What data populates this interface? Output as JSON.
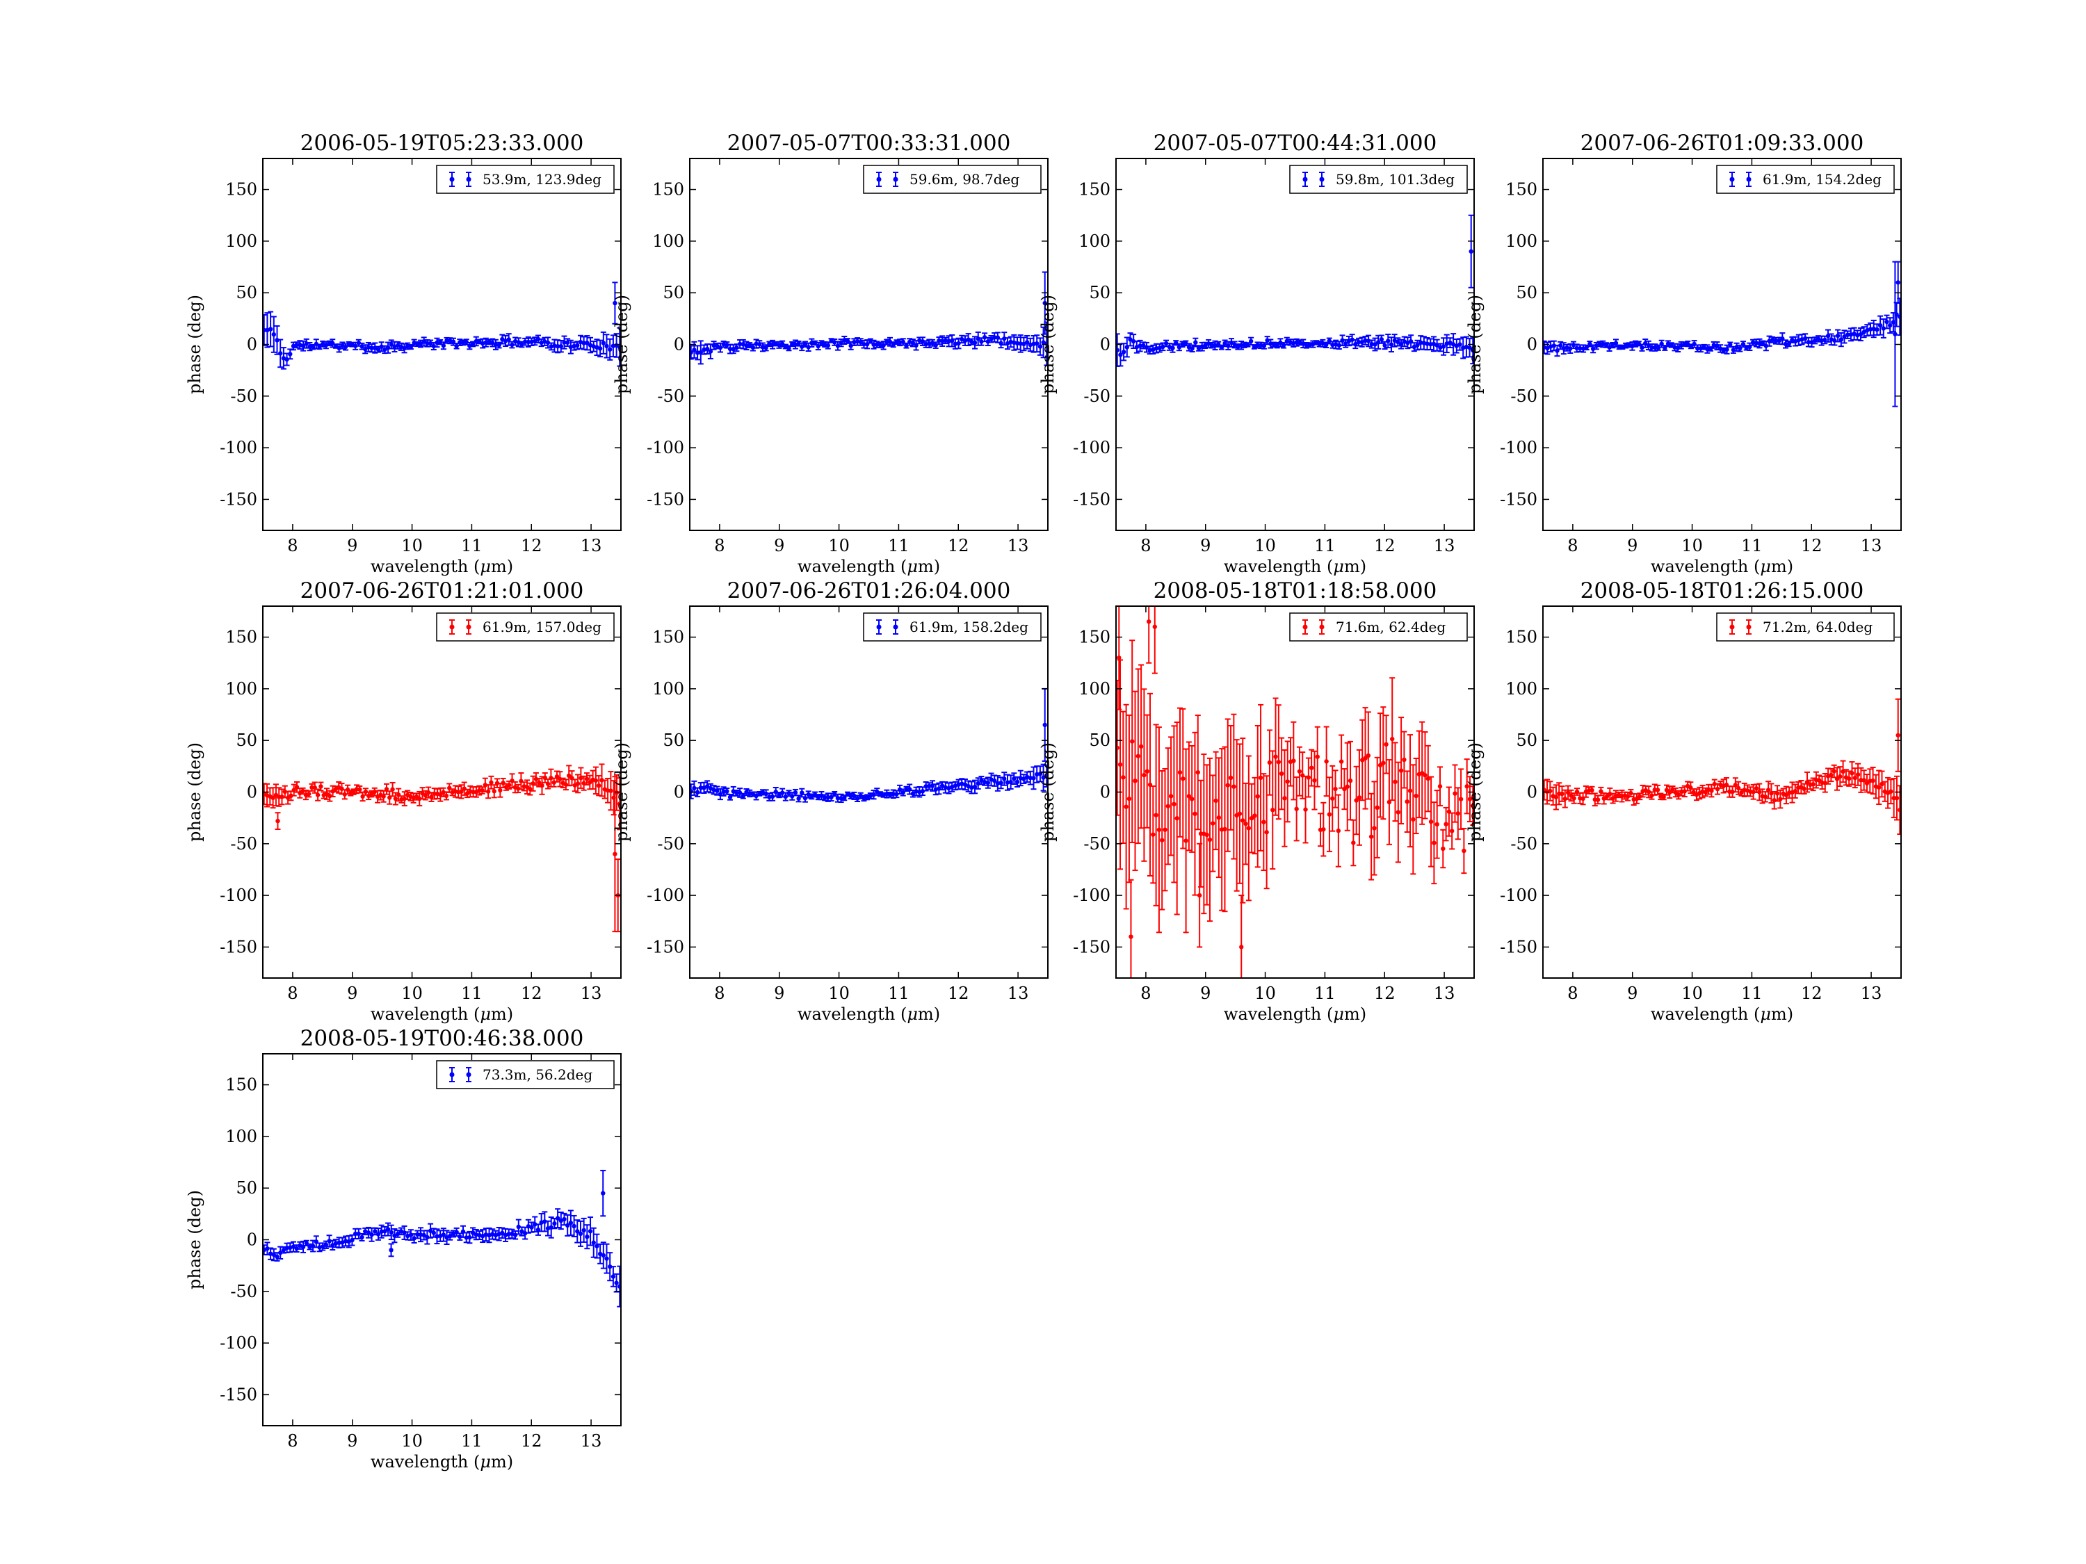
{
  "figure": {
    "domain": "Chart",
    "panel_count": 9
  },
  "chart_data": [
    {
      "type": "scatter",
      "title": "2006-05-19T05:23:33.000",
      "xlabel": "wavelength ($\\mu$m)",
      "ylabel": "phase (deg)",
      "xlim": [
        7.5,
        13.5
      ],
      "ylim": [
        -180,
        180
      ],
      "xticks": [
        8,
        9,
        10,
        11,
        12,
        13
      ],
      "yticks": [
        -150,
        -100,
        -50,
        0,
        50,
        100,
        150
      ],
      "grid": false,
      "legend_position": "top-right",
      "color": "#0000ff",
      "series": [
        {
          "name": "53.9m, 123.9deg",
          "profile": [
            [
              7.5,
              14,
              14
            ],
            [
              7.6,
              13,
              16
            ],
            [
              7.7,
              12,
              17
            ],
            [
              7.8,
              -10,
              10
            ],
            [
              7.9,
              -16,
              8
            ],
            [
              8.0,
              -1,
              4
            ],
            [
              8.5,
              -1,
              3
            ],
            [
              9.0,
              -1,
              3
            ],
            [
              9.5,
              -3,
              4
            ],
            [
              10.0,
              0,
              3
            ],
            [
              10.5,
              1,
              3
            ],
            [
              11.0,
              1,
              3
            ],
            [
              11.5,
              2,
              4
            ],
            [
              12.0,
              3,
              4
            ],
            [
              12.5,
              0,
              5
            ],
            [
              13.0,
              0,
              6
            ],
            [
              13.3,
              -2,
              9
            ],
            [
              13.5,
              -5,
              20
            ]
          ],
          "outliers": [
            [
              13.4,
              40,
              20
            ]
          ],
          "n": 110,
          "jitter": 3,
          "seed": 11
        }
      ]
    },
    {
      "type": "scatter",
      "title": "2007-05-07T00:33:31.000",
      "xlabel": "wavelength ($\\mu$m)",
      "ylabel": "phase (deg)",
      "xlim": [
        7.5,
        13.5
      ],
      "ylim": [
        -180,
        180
      ],
      "xticks": [
        8,
        9,
        10,
        11,
        12,
        13
      ],
      "yticks": [
        -150,
        -100,
        -50,
        0,
        50,
        100,
        150
      ],
      "grid": false,
      "legend_position": "top-right",
      "color": "#0000ff",
      "series": [
        {
          "name": "59.6m, 98.7deg",
          "profile": [
            [
              7.5,
              -5,
              10
            ],
            [
              7.7,
              -8,
              8
            ],
            [
              7.9,
              -3,
              4
            ],
            [
              8.5,
              -2,
              3
            ],
            [
              9.0,
              -1,
              3
            ],
            [
              9.5,
              0,
              3
            ],
            [
              10.0,
              1,
              3
            ],
            [
              10.5,
              2,
              3
            ],
            [
              11.0,
              2,
              3
            ],
            [
              11.5,
              1,
              4
            ],
            [
              12.0,
              3,
              4
            ],
            [
              12.5,
              5,
              5
            ],
            [
              13.0,
              2,
              6
            ],
            [
              13.3,
              -2,
              10
            ],
            [
              13.5,
              0,
              20
            ]
          ],
          "outliers": [
            [
              13.45,
              40,
              30
            ]
          ],
          "n": 110,
          "jitter": 3,
          "seed": 23
        }
      ]
    },
    {
      "type": "scatter",
      "title": "2007-05-07T00:44:31.000",
      "xlabel": "wavelength ($\\mu$m)",
      "ylabel": "phase (deg)",
      "xlim": [
        7.5,
        13.5
      ],
      "ylim": [
        -180,
        180
      ],
      "xticks": [
        8,
        9,
        10,
        11,
        12,
        13
      ],
      "yticks": [
        -150,
        -100,
        -50,
        0,
        50,
        100,
        150
      ],
      "grid": false,
      "legend_position": "top-right",
      "color": "#0000ff",
      "series": [
        {
          "name": "59.8m, 101.3deg",
          "profile": [
            [
              7.5,
              -5,
              12
            ],
            [
              7.6,
              -8,
              8
            ],
            [
              7.75,
              5,
              6
            ],
            [
              7.9,
              -4,
              4
            ],
            [
              8.5,
              -1,
              3
            ],
            [
              9.0,
              -1,
              3
            ],
            [
              9.5,
              0,
              3
            ],
            [
              10.0,
              1,
              3
            ],
            [
              10.5,
              2,
              3
            ],
            [
              11.0,
              2,
              3
            ],
            [
              11.5,
              2,
              4
            ],
            [
              12.0,
              2,
              5
            ],
            [
              12.5,
              0,
              5
            ],
            [
              13.0,
              0,
              6
            ],
            [
              13.3,
              -3,
              9
            ],
            [
              13.5,
              -8,
              15
            ]
          ],
          "outliers": [
            [
              13.45,
              90,
              35
            ]
          ],
          "n": 110,
          "jitter": 3,
          "seed": 37
        }
      ]
    },
    {
      "type": "scatter",
      "title": "2007-06-26T01:09:33.000",
      "xlabel": "wavelength ($\\mu$m)",
      "ylabel": "phase (deg)",
      "xlim": [
        7.5,
        13.5
      ],
      "ylim": [
        -180,
        180
      ],
      "xticks": [
        8,
        9,
        10,
        11,
        12,
        13
      ],
      "yticks": [
        -150,
        -100,
        -50,
        0,
        50,
        100,
        150
      ],
      "grid": false,
      "legend_position": "top-right",
      "color": "#0000ff",
      "series": [
        {
          "name": "61.9m, 154.2deg",
          "profile": [
            [
              7.5,
              -5,
              6
            ],
            [
              7.8,
              -3,
              4
            ],
            [
              8.5,
              -1,
              3
            ],
            [
              9.0,
              -1,
              3
            ],
            [
              9.5,
              -2,
              3
            ],
            [
              10.0,
              -2,
              3
            ],
            [
              10.5,
              -4,
              3
            ],
            [
              11.0,
              -1,
              3
            ],
            [
              11.5,
              3,
              4
            ],
            [
              12.0,
              5,
              4
            ],
            [
              12.5,
              7,
              5
            ],
            [
              13.0,
              12,
              6
            ],
            [
              13.3,
              20,
              9
            ],
            [
              13.5,
              30,
              15
            ]
          ],
          "outliers": [
            [
              13.4,
              10,
              70
            ],
            [
              13.45,
              60,
              20
            ]
          ],
          "n": 110,
          "jitter": 3,
          "seed": 41
        }
      ]
    },
    {
      "type": "scatter",
      "title": "2007-06-26T01:21:01.000",
      "xlabel": "wavelength ($\\mu$m)",
      "ylabel": "phase (deg)",
      "xlim": [
        7.5,
        13.5
      ],
      "ylim": [
        -180,
        180
      ],
      "xticks": [
        8,
        9,
        10,
        11,
        12,
        13
      ],
      "yticks": [
        -150,
        -100,
        -50,
        0,
        50,
        100,
        150
      ],
      "grid": false,
      "legend_position": "top-right",
      "color": "#ff0000",
      "series": [
        {
          "name": "61.9m, 157.0deg",
          "profile": [
            [
              7.5,
              3,
              8
            ],
            [
              7.7,
              -2,
              8
            ],
            [
              7.8,
              -8,
              6
            ],
            [
              8.0,
              2,
              4
            ],
            [
              8.5,
              1,
              4
            ],
            [
              9.0,
              -1,
              4
            ],
            [
              9.5,
              -2,
              5
            ],
            [
              10.0,
              -3,
              5
            ],
            [
              10.5,
              0,
              5
            ],
            [
              11.0,
              3,
              5
            ],
            [
              11.5,
              5,
              5
            ],
            [
              12.0,
              8,
              6
            ],
            [
              12.5,
              12,
              7
            ],
            [
              13.0,
              10,
              9
            ],
            [
              13.3,
              5,
              14
            ],
            [
              13.5,
              -10,
              25
            ]
          ],
          "outliers": [
            [
              7.75,
              -28,
              8
            ],
            [
              13.4,
              -60,
              75
            ],
            [
              13.45,
              -100,
              35
            ]
          ],
          "n": 120,
          "jitter": 5,
          "seed": 53
        }
      ]
    },
    {
      "type": "scatter",
      "title": "2007-06-26T01:26:04.000",
      "xlabel": "wavelength ($\\mu$m)",
      "ylabel": "phase (deg)",
      "xlim": [
        7.5,
        13.5
      ],
      "ylim": [
        -180,
        180
      ],
      "xticks": [
        8,
        9,
        10,
        11,
        12,
        13
      ],
      "yticks": [
        -150,
        -100,
        -50,
        0,
        50,
        100,
        150
      ],
      "grid": false,
      "legend_position": "top-right",
      "color": "#0000ff",
      "series": [
        {
          "name": "61.9m, 158.2deg",
          "profile": [
            [
              7.5,
              0,
              6
            ],
            [
              7.75,
              5,
              5
            ],
            [
              8.0,
              -2,
              4
            ],
            [
              8.5,
              -2,
              3
            ],
            [
              9.0,
              -2,
              3
            ],
            [
              9.5,
              -4,
              3
            ],
            [
              10.0,
              -4,
              3
            ],
            [
              10.5,
              -3,
              3
            ],
            [
              11.0,
              0,
              3
            ],
            [
              11.5,
              3,
              4
            ],
            [
              12.0,
              6,
              4
            ],
            [
              12.5,
              9,
              5
            ],
            [
              13.0,
              12,
              6
            ],
            [
              13.3,
              14,
              9
            ],
            [
              13.5,
              18,
              14
            ]
          ],
          "outliers": [
            [
              13.45,
              65,
              35
            ]
          ],
          "n": 110,
          "jitter": 3,
          "seed": 61
        }
      ]
    },
    {
      "type": "scatter",
      "title": "2008-05-18T01:18:58.000",
      "xlabel": "wavelength ($\\mu$m)",
      "ylabel": "phase (deg)",
      "xlim": [
        7.5,
        13.5
      ],
      "ylim": [
        -180,
        180
      ],
      "xticks": [
        8,
        9,
        10,
        11,
        12,
        13
      ],
      "yticks": [
        -150,
        -100,
        -50,
        0,
        50,
        100,
        150
      ],
      "grid": false,
      "legend_position": "top-right",
      "color": "#ff0000",
      "series": [
        {
          "name": "71.6m, 62.4deg",
          "profile": [
            [
              7.5,
              20,
              90
            ],
            [
              8.0,
              0,
              80
            ],
            [
              8.5,
              -10,
              70
            ],
            [
              9.0,
              -15,
              65
            ],
            [
              9.5,
              -20,
              60
            ],
            [
              10.0,
              -10,
              50
            ],
            [
              10.5,
              5,
              30
            ],
            [
              11.0,
              0,
              25
            ],
            [
              11.5,
              -10,
              35
            ],
            [
              12.0,
              10,
              45
            ],
            [
              12.5,
              0,
              40
            ],
            [
              13.0,
              -20,
              25
            ],
            [
              13.5,
              -30,
              20
            ]
          ],
          "outliers": [
            [
              7.55,
              130,
              50
            ],
            [
              7.75,
              -140,
              55
            ],
            [
              8.05,
              165,
              40
            ],
            [
              8.15,
              160,
              45
            ],
            [
              9.6,
              -150,
              50
            ],
            [
              8.9,
              -100,
              50
            ]
          ],
          "n": 120,
          "jitter": 45,
          "seed": 71
        }
      ]
    },
    {
      "type": "scatter",
      "title": "2008-05-18T01:26:15.000",
      "xlabel": "wavelength ($\\mu$m)",
      "ylabel": "phase (deg)",
      "xlim": [
        7.5,
        13.5
      ],
      "ylim": [
        -180,
        180
      ],
      "xticks": [
        8,
        9,
        10,
        11,
        12,
        13
      ],
      "yticks": [
        -150,
        -100,
        -50,
        0,
        50,
        100,
        150
      ],
      "grid": false,
      "legend_position": "top-right",
      "color": "#ff0000",
      "series": [
        {
          "name": "71.2m, 64.0deg",
          "profile": [
            [
              7.5,
              0,
              12
            ],
            [
              8.0,
              -3,
              5
            ],
            [
              8.5,
              -3,
              4
            ],
            [
              9.0,
              -3,
              4
            ],
            [
              9.5,
              -1,
              4
            ],
            [
              10.0,
              2,
              4
            ],
            [
              10.5,
              5,
              5
            ],
            [
              11.0,
              2,
              5
            ],
            [
              11.5,
              -5,
              8
            ],
            [
              12.0,
              8,
              7
            ],
            [
              12.5,
              18,
              8
            ],
            [
              13.0,
              12,
              10
            ],
            [
              13.3,
              0,
              14
            ],
            [
              13.5,
              -15,
              18
            ]
          ],
          "outliers": [
            [
              13.45,
              55,
              35
            ]
          ],
          "n": 120,
          "jitter": 5,
          "seed": 83
        }
      ]
    },
    {
      "type": "scatter",
      "title": "2008-05-19T00:46:38.000",
      "xlabel": "wavelength ($\\mu$m)",
      "ylabel": "phase (deg)",
      "xlim": [
        7.5,
        13.5
      ],
      "ylim": [
        -180,
        180
      ],
      "xticks": [
        8,
        9,
        10,
        11,
        12,
        13
      ],
      "yticks": [
        -150,
        -100,
        -50,
        0,
        50,
        100,
        150
      ],
      "grid": false,
      "legend_position": "top-right",
      "color": "#0000ff",
      "series": [
        {
          "name": "73.3m, 56.2deg",
          "profile": [
            [
              7.5,
              -10,
              6
            ],
            [
              7.8,
              -15,
              5
            ],
            [
              8.0,
              -8,
              4
            ],
            [
              8.5,
              -4,
              4
            ],
            [
              9.0,
              2,
              4
            ],
            [
              9.5,
              8,
              5
            ],
            [
              10.0,
              5,
              5
            ],
            [
              10.5,
              5,
              5
            ],
            [
              11.0,
              5,
              5
            ],
            [
              11.5,
              7,
              5
            ],
            [
              12.0,
              10,
              6
            ],
            [
              12.5,
              18,
              8
            ],
            [
              13.0,
              5,
              10
            ],
            [
              13.3,
              -25,
              12
            ],
            [
              13.5,
              -50,
              15
            ]
          ],
          "outliers": [
            [
              9.65,
              -10,
              6
            ],
            [
              13.2,
              45,
              22
            ]
          ],
          "n": 110,
          "jitter": 4,
          "seed": 97
        }
      ]
    }
  ]
}
